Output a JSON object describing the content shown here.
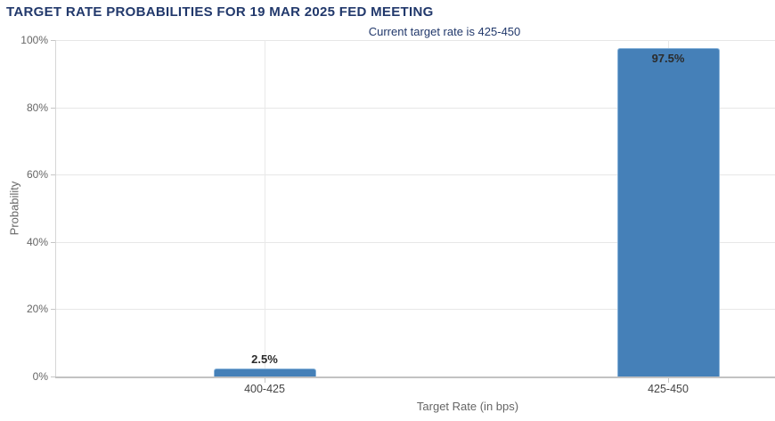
{
  "chart_data": {
    "type": "bar",
    "title": "TARGET RATE PROBABILITIES FOR 19 MAR 2025 FED MEETING",
    "subtitle": "Current target rate is 425-450",
    "categories": [
      "400-425",
      "425-450"
    ],
    "values": [
      2.5,
      97.5
    ],
    "data_labels": [
      "2.5%",
      "97.5%"
    ],
    "xlabel": "Target Rate (in bps)",
    "ylabel": "Probability",
    "ylim": [
      0,
      100
    ],
    "ytick_values": [
      0,
      20,
      40,
      60,
      80,
      100
    ],
    "ytick_labels": [
      "0%",
      "20%",
      "40%",
      "60%",
      "80%",
      "100%"
    ],
    "grid": "horizontal gridlines at 20% steps, vertical gridline at each category center",
    "legend": "none",
    "colors": {
      "background": "#ffffff",
      "bar_fill": "#4580b8",
      "bar_border": "#8ab4da",
      "title_text": "#21386b",
      "subtitle_text": "#21386b",
      "gridline": "#e7e7e7",
      "axis_line": "#c2c2c2",
      "y_tick_text": "#666666",
      "x_tick_text": "#444444",
      "axis_title_text": "#666666",
      "data_label_text": "#2b2b2b"
    }
  }
}
